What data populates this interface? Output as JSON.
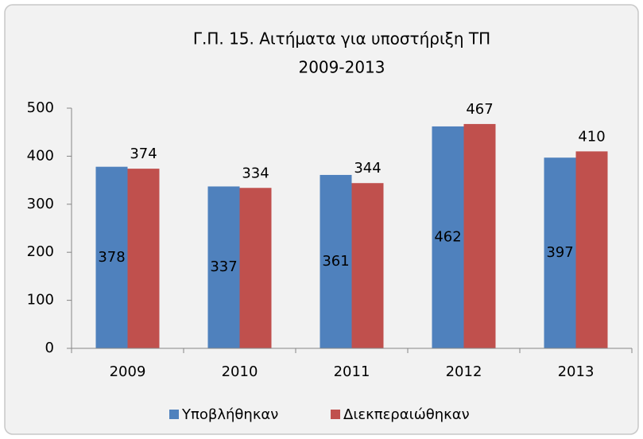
{
  "chart_data": {
    "type": "bar",
    "title": "Γ.Π. 15.  Αιτήματα για υποστήριξη ΤΠ",
    "subtitle": "2009-2013",
    "categories": [
      "2009",
      "2010",
      "2011",
      "2012",
      "2013"
    ],
    "series": [
      {
        "name": "Υποβλήθηκαν",
        "color": "#4f81bd",
        "values": [
          378,
          337,
          361,
          462,
          397
        ]
      },
      {
        "name": "Διεκπεραιώθηκαν",
        "color": "#c0504d",
        "values": [
          374,
          334,
          344,
          467,
          410
        ]
      }
    ],
    "ylim": [
      0,
      500
    ],
    "yticks": [
      0,
      100,
      200,
      300,
      400,
      500
    ],
    "grid": false,
    "legend": "bottom"
  }
}
